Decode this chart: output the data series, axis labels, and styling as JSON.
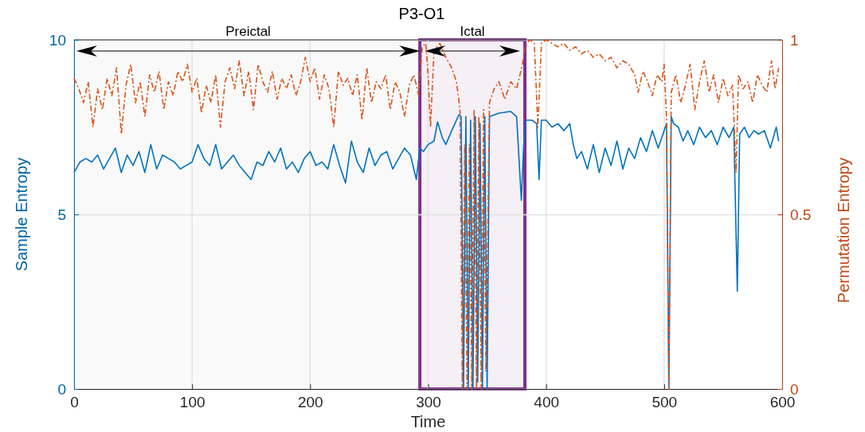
{
  "chart_data": {
    "type": "line",
    "title": "P3-O1",
    "xlabel": "Time",
    "ylabel": "Sample Entropy",
    "y2label": "Permutation Entropy",
    "xlim": [
      0,
      600
    ],
    "xticks": [
      0,
      100,
      200,
      300,
      400,
      500,
      600
    ],
    "ylim": [
      0,
      10
    ],
    "yticks": [
      0,
      5,
      10
    ],
    "y2lim": [
      0,
      1
    ],
    "y2ticks": [
      0,
      0.5,
      1
    ],
    "grid": true,
    "bands": [
      {
        "axis": "x",
        "from": 2,
        "to": 293,
        "label": "Preictal"
      },
      {
        "axis": "x",
        "from": 293,
        "to": 382,
        "label": "Ictal",
        "color": "#7e2f8e"
      }
    ],
    "series": [
      {
        "color": "#0072bd",
        "line_style": "solid",
        "x": [
          0,
          5,
          10,
          15,
          20,
          25,
          30,
          35,
          40,
          45,
          50,
          55,
          60,
          65,
          70,
          75,
          80,
          85,
          90,
          95,
          100,
          105,
          110,
          115,
          120,
          125,
          130,
          135,
          140,
          145,
          150,
          155,
          160,
          165,
          170,
          175,
          180,
          185,
          190,
          195,
          200,
          205,
          210,
          215,
          220,
          225,
          230,
          235,
          240,
          245,
          250,
          255,
          260,
          265,
          270,
          275,
          280,
          285,
          290,
          293,
          296,
          300,
          305,
          308,
          312,
          315,
          320,
          326,
          328,
          330,
          332,
          334,
          336,
          338,
          340,
          342,
          344,
          346,
          348,
          350,
          352,
          360,
          370,
          375,
          379,
          381,
          383,
          388,
          392,
          394,
          396,
          400,
          405,
          410,
          415,
          420,
          423,
          426,
          430,
          435,
          440,
          445,
          450,
          455,
          460,
          465,
          470,
          475,
          480,
          485,
          490,
          495,
          500,
          502,
          504,
          506,
          508,
          512,
          516,
          520,
          525,
          530,
          535,
          540,
          545,
          550,
          555,
          559,
          562,
          564,
          568,
          572,
          576,
          580,
          585,
          590,
          595,
          597
        ],
        "values": [
          6.2,
          6.5,
          6.6,
          6.5,
          6.7,
          6.3,
          6.6,
          6.9,
          6.2,
          6.7,
          6.4,
          6.8,
          6.2,
          7.0,
          6.3,
          6.7,
          6.6,
          6.5,
          6.3,
          6.4,
          6.5,
          7.0,
          6.6,
          6.4,
          7.0,
          6.3,
          6.5,
          6.7,
          6.4,
          6.2,
          6.0,
          6.5,
          6.4,
          6.8,
          6.5,
          6.9,
          6.3,
          6.5,
          6.2,
          6.6,
          6.8,
          6.4,
          6.5,
          6.3,
          7.0,
          6.4,
          5.9,
          7.1,
          6.5,
          6.2,
          6.9,
          6.4,
          6.7,
          6.8,
          6.3,
          6.6,
          6.9,
          6.7,
          6.0,
          6.9,
          6.8,
          7.0,
          7.1,
          7.65,
          7.2,
          7.0,
          7.4,
          7.85,
          7.8,
          0,
          7.8,
          0,
          7.7,
          0,
          7.8,
          0.2,
          7.6,
          0,
          7.8,
          0,
          7.8,
          7.9,
          7.95,
          7.8,
          5.4,
          7.0,
          7.7,
          7.7,
          7.6,
          6.0,
          7.7,
          7.7,
          7.5,
          7.6,
          7.4,
          7.6,
          7.0,
          6.6,
          6.8,
          6.3,
          7.0,
          6.2,
          6.9,
          6.4,
          7.1,
          6.3,
          6.9,
          6.6,
          7.2,
          6.8,
          7.4,
          6.9,
          7.4,
          7.6,
          0,
          7.8,
          7.6,
          7.5,
          7.1,
          7.4,
          7.0,
          7.5,
          7.2,
          7.4,
          7.0,
          7.5,
          7.2,
          7.5,
          2.8,
          7.3,
          7.5,
          7.2,
          7.4,
          7.3,
          7.4,
          6.9,
          7.5,
          7.1
        ]
      },
      {
        "color": "#d95319",
        "axis": "y2",
        "line_style": "dashed",
        "x": [
          0,
          4,
          8,
          12,
          16,
          20,
          24,
          28,
          32,
          36,
          40,
          44,
          48,
          52,
          56,
          60,
          64,
          68,
          72,
          76,
          80,
          84,
          88,
          92,
          96,
          100,
          104,
          108,
          112,
          116,
          120,
          124,
          128,
          132,
          136,
          140,
          144,
          148,
          152,
          156,
          160,
          164,
          168,
          172,
          176,
          180,
          184,
          188,
          192,
          196,
          200,
          204,
          208,
          212,
          216,
          220,
          224,
          228,
          232,
          236,
          240,
          244,
          248,
          252,
          256,
          260,
          264,
          268,
          272,
          276,
          280,
          284,
          288,
          292,
          295,
          298,
          300,
          302,
          305,
          310,
          315,
          320,
          324,
          327,
          329,
          331,
          333,
          335,
          337,
          339,
          341,
          343,
          345,
          347,
          349,
          352,
          356,
          360,
          365,
          370,
          375,
          380,
          382,
          386,
          390,
          393,
          396,
          400,
          405,
          410,
          415,
          420,
          425,
          430,
          435,
          440,
          445,
          450,
          455,
          460,
          465,
          470,
          475,
          478,
          482,
          486,
          490,
          494,
          498,
          500,
          502,
          504,
          506,
          510,
          514,
          518,
          522,
          526,
          530,
          534,
          538,
          542,
          546,
          550,
          554,
          558,
          561,
          563,
          567,
          571,
          575,
          579,
          583,
          587,
          591,
          594,
          597
        ],
        "values": [
          0.89,
          0.86,
          0.82,
          0.88,
          0.75,
          0.86,
          0.8,
          0.89,
          0.84,
          0.92,
          0.73,
          0.87,
          0.93,
          0.82,
          0.88,
          0.78,
          0.9,
          0.85,
          0.91,
          0.8,
          0.88,
          0.84,
          0.91,
          0.88,
          0.93,
          0.85,
          0.89,
          0.79,
          0.87,
          0.82,
          0.9,
          0.75,
          0.88,
          0.92,
          0.86,
          0.94,
          0.84,
          0.91,
          0.8,
          0.93,
          0.88,
          0.85,
          0.91,
          0.83,
          0.89,
          0.86,
          0.9,
          0.84,
          0.88,
          0.95,
          0.88,
          0.92,
          0.83,
          0.9,
          0.86,
          0.75,
          0.91,
          0.87,
          0.89,
          0.84,
          0.9,
          0.77,
          0.92,
          0.82,
          0.88,
          0.86,
          0.9,
          0.8,
          0.88,
          0.85,
          0.78,
          0.87,
          0.9,
          0.84,
          0.98,
          0.99,
          0.9,
          0.75,
          0.97,
          0.99,
          0.95,
          0.92,
          0.88,
          0.8,
          0,
          0.7,
          0,
          0.7,
          0,
          0.8,
          0,
          0.78,
          0,
          0.8,
          0.05,
          0.82,
          0.86,
          0.88,
          0.83,
          0.88,
          0.86,
          0.93,
          0.98,
          1.0,
          0.99,
          0.75,
          0.99,
          1.0,
          0.99,
          0.98,
          0.99,
          0.97,
          0.98,
          0.96,
          0.97,
          0.95,
          0.96,
          0.94,
          0.95,
          0.92,
          0.94,
          0.93,
          0.9,
          0.85,
          0.91,
          0.88,
          0.84,
          0.9,
          0.88,
          0.93,
          0.78,
          0,
          0.85,
          0.9,
          0.82,
          0.87,
          0.93,
          0.8,
          0.88,
          0.94,
          0.85,
          0.9,
          0.82,
          0.89,
          0.84,
          0.87,
          0.62,
          0.9,
          0.86,
          0.88,
          0.82,
          0.9,
          0.87,
          0.85,
          0.94,
          0.86,
          0.92
        ]
      }
    ]
  }
}
